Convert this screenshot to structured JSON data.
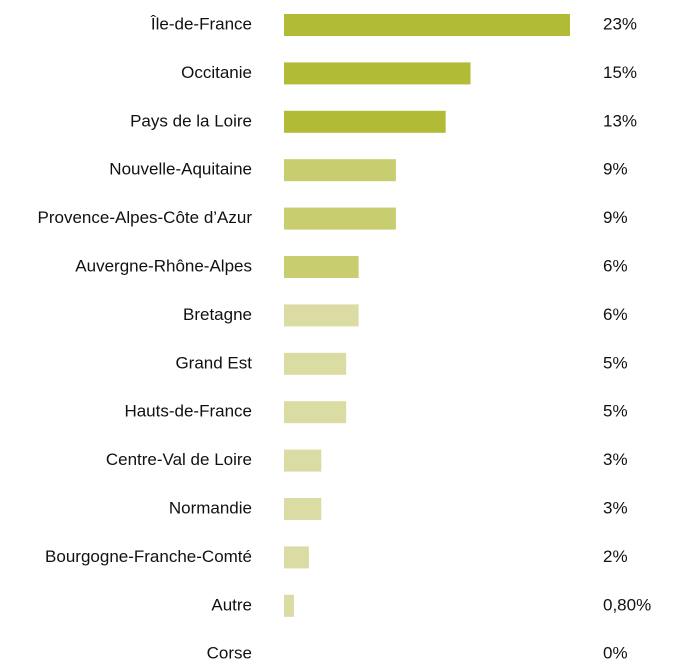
{
  "chart_data": {
    "type": "bar",
    "orientation": "horizontal",
    "categories": [
      "Île-de-France",
      "Occitanie",
      "Pays de la Loire",
      "Nouvelle-Aquitaine",
      "Provence-Alpes-Côte d’Azur",
      "Auvergne-Rhône-Alpes",
      "Bretagne",
      "Grand Est",
      "Hauts-de-France",
      "Centre-Val de Loire",
      "Normandie",
      "Bourgogne-Franche-Comté",
      "Autre",
      "Corse"
    ],
    "values": [
      23,
      15,
      13,
      9,
      9,
      6,
      6,
      5,
      5,
      3,
      3,
      2,
      0.8,
      0
    ],
    "value_labels": [
      "23%",
      "15%",
      "13%",
      "9%",
      "9%",
      "6%",
      "6%",
      "5%",
      "5%",
      "3%",
      "3%",
      "2%",
      "0,80%",
      "0%"
    ],
    "colors": [
      "#b1bb35",
      "#b1bb35",
      "#b1bb35",
      "#c8cd6f",
      "#c8cd6f",
      "#c8cd6f",
      "#dbdca3",
      "#dbdca3",
      "#dbdca3",
      "#dbdca3",
      "#dbdca3",
      "#dbdca3",
      "#dbdca3",
      "#dbdca3"
    ]
  }
}
